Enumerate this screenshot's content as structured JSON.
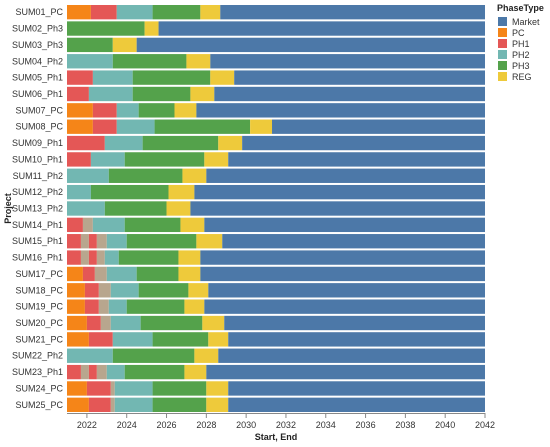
{
  "chart_data": {
    "type": "bar",
    "orientation": "horizontal-stacked-timeline",
    "xlabel": "Start, End",
    "ylabel": "Project",
    "xlim": [
      2021,
      2042
    ],
    "x_ticks": [
      "2022",
      "2024",
      "2026",
      "2028",
      "2030",
      "2032",
      "2034",
      "2036",
      "2038",
      "2040",
      "2042"
    ],
    "grid": false,
    "legend": {
      "title": "PhaseType",
      "placement": "top-right",
      "items": [
        {
          "name": "Market",
          "color": "#4c78a8"
        },
        {
          "name": "PC",
          "color": "#f58518"
        },
        {
          "name": "PH1",
          "color": "#e45756"
        },
        {
          "name": "PH2",
          "color": "#72b7b2"
        },
        {
          "name": "PH3",
          "color": "#54a24b"
        },
        {
          "name": "REG",
          "color": "#eeca3b"
        }
      ]
    },
    "projects": [
      {
        "name": "SUM01_PC",
        "phases": [
          [
            "PC",
            2021,
            2022.2
          ],
          [
            "PH1",
            2022.2,
            2023.5
          ],
          [
            "PH2",
            2023.5,
            2025.3
          ],
          [
            "PH3",
            2025.3,
            2027.7
          ],
          [
            "REG",
            2027.7,
            2028.7
          ],
          [
            "Market",
            2028.7,
            2042
          ]
        ]
      },
      {
        "name": "SUM02_Ph3",
        "phases": [
          [
            "PH3",
            2021,
            2024.9
          ],
          [
            "REG",
            2024.9,
            2025.6
          ],
          [
            "Market",
            2025.6,
            2042
          ]
        ]
      },
      {
        "name": "SUM03_Ph3",
        "phases": [
          [
            "PH3",
            2021,
            2023.3
          ],
          [
            "REG",
            2023.3,
            2024.5
          ],
          [
            "Market",
            2024.5,
            2042
          ]
        ]
      },
      {
        "name": "SUM04_Ph2",
        "phases": [
          [
            "PH2",
            2021,
            2023.3
          ],
          [
            "PH3",
            2023.3,
            2027
          ],
          [
            "REG",
            2027,
            2028.2
          ],
          [
            "Market",
            2028.2,
            2042
          ]
        ]
      },
      {
        "name": "SUM05_Ph1",
        "phases": [
          [
            "PH1",
            2021,
            2022.3
          ],
          [
            "PH2",
            2022.3,
            2024.3
          ],
          [
            "PH3",
            2024.3,
            2028.2
          ],
          [
            "REG",
            2028.2,
            2029.4
          ],
          [
            "Market",
            2029.4,
            2042
          ]
        ]
      },
      {
        "name": "SUM06_Ph1",
        "phases": [
          [
            "PH1",
            2021,
            2022.1
          ],
          [
            "PH2",
            2022.1,
            2024.3
          ],
          [
            "PH3",
            2024.3,
            2027.2
          ],
          [
            "REG",
            2027.2,
            2028.4
          ],
          [
            "Market",
            2028.4,
            2042
          ]
        ]
      },
      {
        "name": "SUM07_PC",
        "phases": [
          [
            "PC",
            2021,
            2022.3
          ],
          [
            "PH1",
            2022.3,
            2023.5
          ],
          [
            "PH2",
            2023.5,
            2024.6
          ],
          [
            "PH3",
            2024.6,
            2026.4
          ],
          [
            "REG",
            2026.4,
            2027.5
          ],
          [
            "Market",
            2027.5,
            2042
          ]
        ]
      },
      {
        "name": "SUM08_PC",
        "phases": [
          [
            "PC",
            2021,
            2022.3
          ],
          [
            "PH1",
            2022.3,
            2023.5
          ],
          [
            "PH2",
            2023.5,
            2025.4
          ],
          [
            "PH3",
            2025.4,
            2030.2
          ],
          [
            "REG",
            2030.2,
            2031.3
          ],
          [
            "Market",
            2031.3,
            2042
          ]
        ]
      },
      {
        "name": "SUM09_Ph1",
        "phases": [
          [
            "PH1",
            2021,
            2022.9
          ],
          [
            "PH2",
            2022.9,
            2024.8
          ],
          [
            "PH3",
            2024.8,
            2028.6
          ],
          [
            "REG",
            2028.6,
            2029.8
          ],
          [
            "Market",
            2029.8,
            2042
          ]
        ]
      },
      {
        "name": "SUM10_Ph1",
        "phases": [
          [
            "PH1",
            2021,
            2022.2
          ],
          [
            "PH2",
            2022.2,
            2023.9
          ],
          [
            "PH3",
            2023.9,
            2027.9
          ],
          [
            "REG",
            2027.9,
            2029.1
          ],
          [
            "Market",
            2029.1,
            2042
          ]
        ]
      },
      {
        "name": "SUM11_Ph2",
        "phases": [
          [
            "PH2",
            2021,
            2023.1
          ],
          [
            "PH3",
            2023.1,
            2026.8
          ],
          [
            "REG",
            2026.8,
            2028
          ],
          [
            "Market",
            2028,
            2042
          ]
        ]
      },
      {
        "name": "SUM12_Ph2",
        "phases": [
          [
            "PH2",
            2021,
            2022.2
          ],
          [
            "PH3",
            2022.2,
            2026.1
          ],
          [
            "REG",
            2026.1,
            2027.4
          ],
          [
            "Market",
            2027.4,
            2042
          ]
        ]
      },
      {
        "name": "SUM13_Ph2",
        "phases": [
          [
            "PH2",
            2021,
            2022.9
          ],
          [
            "PH3",
            2022.9,
            2026
          ],
          [
            "REG",
            2026,
            2027.2
          ],
          [
            "Market",
            2027.2,
            2042
          ]
        ]
      },
      {
        "name": "SUM14_Ph1",
        "phases": [
          [
            "PH1",
            2021,
            2021.8
          ],
          [
            "Unlabeled",
            2021.8,
            2022.3
          ],
          [
            "PH2",
            2022.3,
            2023.9
          ],
          [
            "PH3",
            2023.9,
            2026.7
          ],
          [
            "REG",
            2026.7,
            2027.9
          ],
          [
            "Market",
            2027.9,
            2042
          ]
        ]
      },
      {
        "name": "SUM15_Ph1",
        "phases": [
          [
            "PH1",
            2021,
            2021.7
          ],
          [
            "Unlabeled",
            2021.7,
            2022.1
          ],
          [
            "PH1",
            2022.1,
            2022.5
          ],
          [
            "Unlabeled",
            2022.5,
            2023
          ],
          [
            "PH2",
            2023,
            2024
          ],
          [
            "PH3",
            2024,
            2027.5
          ],
          [
            "REG",
            2027.5,
            2028.8
          ],
          [
            "Market",
            2028.8,
            2042
          ]
        ]
      },
      {
        "name": "SUM16_Ph1",
        "phases": [
          [
            "PH1",
            2021,
            2021.7
          ],
          [
            "Unlabeled",
            2021.7,
            2022.1
          ],
          [
            "PH1",
            2022.1,
            2022.5
          ],
          [
            "Unlabeled",
            2022.5,
            2022.9
          ],
          [
            "PH2",
            2022.9,
            2023.6
          ],
          [
            "PH3",
            2023.6,
            2026.6
          ],
          [
            "REG",
            2026.6,
            2027.7
          ],
          [
            "Market",
            2027.7,
            2042
          ]
        ]
      },
      {
        "name": "SUM17_PC",
        "phases": [
          [
            "PC",
            2021,
            2021.8
          ],
          [
            "PH1",
            2021.8,
            2022.4
          ],
          [
            "Unlabeled",
            2022.4,
            2023
          ],
          [
            "PH2",
            2023,
            2024.5
          ],
          [
            "PH3",
            2024.5,
            2026.6
          ],
          [
            "REG",
            2026.6,
            2027.7
          ],
          [
            "Market",
            2027.7,
            2042
          ]
        ]
      },
      {
        "name": "SUM18_PC",
        "phases": [
          [
            "PC",
            2021,
            2021.9
          ],
          [
            "PH1",
            2021.9,
            2022.6
          ],
          [
            "Unlabeled",
            2022.6,
            2023.2
          ],
          [
            "PH2",
            2023.2,
            2024.6
          ],
          [
            "PH3",
            2024.6,
            2027.1
          ],
          [
            "REG",
            2027.1,
            2028.1
          ],
          [
            "Market",
            2028.1,
            2042
          ]
        ]
      },
      {
        "name": "SUM19_PC",
        "phases": [
          [
            "PC",
            2021,
            2021.9
          ],
          [
            "PH1",
            2021.9,
            2022.6
          ],
          [
            "Unlabeled",
            2022.6,
            2023.1
          ],
          [
            "PH2",
            2023.1,
            2024
          ],
          [
            "PH3",
            2024,
            2026.9
          ],
          [
            "REG",
            2026.9,
            2027.9
          ],
          [
            "Market",
            2027.9,
            2042
          ]
        ]
      },
      {
        "name": "SUM20_PC",
        "phases": [
          [
            "PC",
            2021,
            2022
          ],
          [
            "PH1",
            2022,
            2022.7
          ],
          [
            "Unlabeled",
            2022.7,
            2023.2
          ],
          [
            "PH2",
            2023.2,
            2024.7
          ],
          [
            "PH3",
            2024.7,
            2027.8
          ],
          [
            "REG",
            2027.8,
            2028.9
          ],
          [
            "Market",
            2028.9,
            2042
          ]
        ]
      },
      {
        "name": "SUM21_PC",
        "phases": [
          [
            "PC",
            2021,
            2022.1
          ],
          [
            "PH1",
            2022.1,
            2023.3
          ],
          [
            "PH2",
            2023.3,
            2025.3
          ],
          [
            "PH3",
            2025.3,
            2028.1
          ],
          [
            "REG",
            2028.1,
            2029.1
          ],
          [
            "Market",
            2029.1,
            2042
          ]
        ]
      },
      {
        "name": "SUM22_Ph2",
        "phases": [
          [
            "PH2",
            2021,
            2023.3
          ],
          [
            "PH3",
            2023.3,
            2027.4
          ],
          [
            "REG",
            2027.4,
            2028.6
          ],
          [
            "Market",
            2028.6,
            2042
          ]
        ]
      },
      {
        "name": "SUM23_Ph1",
        "phases": [
          [
            "PH1",
            2021,
            2021.7
          ],
          [
            "Unlabeled",
            2021.7,
            2022.1
          ],
          [
            "PH1",
            2022.1,
            2022.5
          ],
          [
            "Unlabeled",
            2022.5,
            2023
          ],
          [
            "PH2",
            2023,
            2023.9
          ],
          [
            "PH3",
            2023.9,
            2026.9
          ],
          [
            "REG",
            2026.9,
            2028
          ],
          [
            "Market",
            2028,
            2042
          ]
        ]
      },
      {
        "name": "SUM24_PC",
        "phases": [
          [
            "PC",
            2021,
            2022
          ],
          [
            "PH1",
            2022,
            2023.2
          ],
          [
            "Unlabeled",
            2023.2,
            2023.4
          ],
          [
            "PH2",
            2023.4,
            2025.3
          ],
          [
            "PH3",
            2025.3,
            2028
          ],
          [
            "REG",
            2028,
            2029.1
          ],
          [
            "Market",
            2029.1,
            2042
          ]
        ]
      },
      {
        "name": "SUM25_PC",
        "phases": [
          [
            "PC",
            2021,
            2022.1
          ],
          [
            "PH1",
            2022.1,
            2023.2
          ],
          [
            "Unlabeled",
            2023.2,
            2023.4
          ],
          [
            "PH2",
            2023.4,
            2025.3
          ],
          [
            "PH3",
            2025.3,
            2028
          ],
          [
            "REG",
            2028,
            2029.1
          ],
          [
            "Market",
            2029.1,
            2042
          ]
        ]
      }
    ],
    "unlabeled_segment_color": "#b8a68e"
  }
}
